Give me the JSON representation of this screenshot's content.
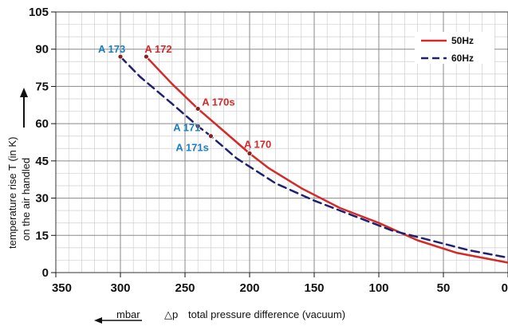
{
  "chart_data": {
    "type": "line",
    "xlabel_unit": "mbar",
    "xlabel_symbol": "△p",
    "xlabel": "total pressure difference (vacuum)",
    "ylabel_line1": "temperature rise T (in K)",
    "ylabel_line2": "on the air handled",
    "xlim": [
      350,
      0
    ],
    "ylim": [
      0,
      105
    ],
    "x_ticks": [
      350,
      300,
      250,
      200,
      150,
      100,
      50,
      0
    ],
    "y_ticks": [
      0,
      15,
      30,
      45,
      60,
      75,
      90,
      105
    ],
    "grid": true,
    "legend_position": "top-right",
    "series": [
      {
        "name": "50Hz",
        "color": "#d42a2a",
        "dash": "solid",
        "x": [
          280,
          260,
          240,
          220,
          200,
          185,
          160,
          130,
          100,
          70,
          40,
          0
        ],
        "y": [
          87,
          76,
          66,
          57,
          48,
          42,
          34,
          26,
          20,
          13,
          8,
          4
        ]
      },
      {
        "name": "60Hz",
        "color": "#202070",
        "dash": "dashed",
        "x": [
          300,
          285,
          260,
          240,
          230,
          210,
          180,
          150,
          120,
          90,
          60,
          30,
          0
        ],
        "y": [
          87,
          79,
          68,
          59,
          55,
          46,
          36,
          29,
          23,
          17,
          13,
          9,
          6
        ]
      }
    ],
    "points": [
      {
        "label": "A 172",
        "x": 280,
        "y": 87,
        "color": "#d42a2a"
      },
      {
        "label": "A 173",
        "x": 300,
        "y": 87,
        "color": "#1a7fc0"
      },
      {
        "label": "A 170s",
        "x": 240,
        "y": 66,
        "color": "#d42a2a"
      },
      {
        "label": "A 171",
        "x": 240,
        "y": 59,
        "color": "#1a7fc0"
      },
      {
        "label": "A 171s",
        "x": 230,
        "y": 55,
        "color": "#1a7fc0"
      },
      {
        "label": "A 170",
        "x": 200,
        "y": 48,
        "color": "#d42a2a"
      }
    ]
  }
}
